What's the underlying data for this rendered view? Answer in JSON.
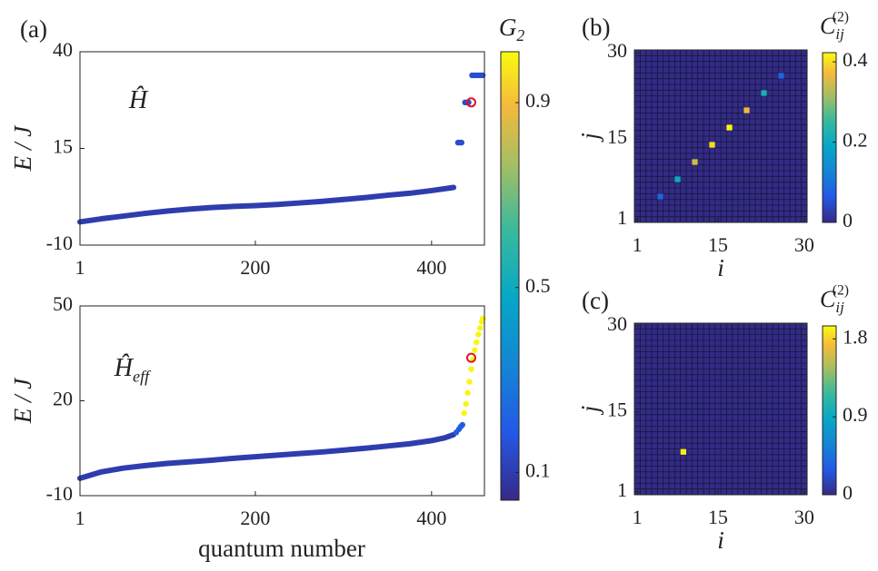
{
  "chart_data": [
    {
      "type": "scatter",
      "label": "(a)",
      "ylabel": "E / J",
      "annotation": {
        "text": "Ĥ"
      },
      "xlim": [
        1,
        460
      ],
      "xticks": [
        1,
        200,
        400
      ],
      "ylim": [
        -10,
        40
      ],
      "yticks": [
        -10,
        15,
        40
      ],
      "series": [
        {
          "mode": "line",
          "g2": 0.1,
          "x": [
            1,
            25,
            50,
            75,
            100,
            125,
            150,
            175,
            200,
            225,
            250,
            275,
            300,
            325,
            350,
            375,
            400,
            425
          ],
          "values": [
            -4.0,
            -3.2,
            -2.5,
            -1.8,
            -1.2,
            -0.7,
            -0.3,
            0.0,
            0.2,
            0.5,
            0.9,
            1.3,
            1.8,
            2.3,
            2.9,
            3.4,
            4.1,
            4.9
          ]
        },
        {
          "mode": "markers",
          "g2": 0.15,
          "x": [
            430,
            432,
            434,
            438,
            440,
            442,
            446,
            449,
            452,
            455,
            458
          ],
          "values": [
            16.5,
            16.5,
            16.5,
            26.9,
            26.9,
            26.9,
            33.9,
            33.9,
            33.9,
            33.9,
            33.9
          ]
        }
      ],
      "highlight": {
        "x": 445,
        "y": 26.9
      }
    },
    {
      "type": "scatter",
      "ylabel": "E / J",
      "xlabel": "quantum number",
      "annotation": {
        "text": "Ĥ",
        "sub": "eff"
      },
      "xlim": [
        1,
        460
      ],
      "xticks": [
        1,
        200,
        400
      ],
      "ylim": [
        -10,
        50
      ],
      "yticks": [
        -10,
        20,
        50
      ],
      "series": [
        {
          "mode": "line",
          "g2": 0.1,
          "x": [
            1,
            25,
            50,
            75,
            100,
            125,
            150,
            175,
            200,
            225,
            250,
            275,
            300,
            325,
            350,
            375,
            400,
            415,
            425
          ],
          "values": [
            -4.5,
            -2.5,
            -1.3,
            -0.5,
            0.2,
            0.7,
            1.2,
            1.8,
            2.3,
            2.8,
            3.3,
            3.8,
            4.4,
            5.0,
            5.7,
            6.4,
            7.4,
            8.3,
            9.3
          ]
        },
        {
          "mode": "markers",
          "g2": 0.2,
          "x": [
            428,
            431,
            433,
            435
          ],
          "values": [
            10.0,
            11.0,
            11.8,
            12.4
          ]
        },
        {
          "mode": "markers",
          "g2": 1.0,
          "x": [
            437,
            439,
            441,
            443,
            445,
            447,
            449,
            451,
            453,
            455,
            457,
            458
          ],
          "values": [
            16.1,
            19,
            22.5,
            26,
            30,
            33,
            36,
            38.5,
            41,
            43,
            45,
            46
          ]
        }
      ],
      "highlight": {
        "x": 445,
        "y": 33.6
      }
    },
    {
      "type": "colorbar",
      "label": {
        "text": "G",
        "sub": "2"
      },
      "ylim": [
        0.04,
        1.01
      ],
      "yticks": [
        0.1,
        0.5,
        0.9
      ]
    },
    {
      "type": "heatmap",
      "label": "(b)",
      "xlabel": "i",
      "ylabel": "j",
      "xlim": [
        0.5,
        30.5
      ],
      "xticks": [
        1,
        15,
        30
      ],
      "ylim": [
        0.5,
        30.5
      ],
      "yticks": [
        1,
        15,
        30
      ],
      "x": [
        5,
        8,
        11,
        14,
        17,
        20,
        23,
        26
      ],
      "y": [
        5,
        8,
        11,
        14,
        17,
        20,
        23,
        26
      ],
      "values": [
        0.08,
        0.2,
        0.35,
        0.4,
        0.42,
        0.37,
        0.22,
        0.08
      ],
      "zlabel": {
        "text": "C",
        "sub": "ij",
        "sup": "(2)"
      },
      "zlim": [
        0,
        0.423
      ],
      "zticks": [
        0,
        0.2,
        0.4
      ]
    },
    {
      "type": "heatmap",
      "label": "(c)",
      "xlabel": "i",
      "ylabel": "j",
      "xlim": [
        0.5,
        30.5
      ],
      "xticks": [
        1,
        15,
        30
      ],
      "ylim": [
        0.5,
        30.5
      ],
      "yticks": [
        1,
        15,
        30
      ],
      "x": [
        9
      ],
      "y": [
        8
      ],
      "values": [
        1.9
      ],
      "zlabel": {
        "text": "C",
        "sub": "ij",
        "sup": "(2)"
      },
      "zlim": [
        0,
        1.95
      ],
      "zticks": [
        0,
        0.9,
        1.8
      ]
    }
  ]
}
